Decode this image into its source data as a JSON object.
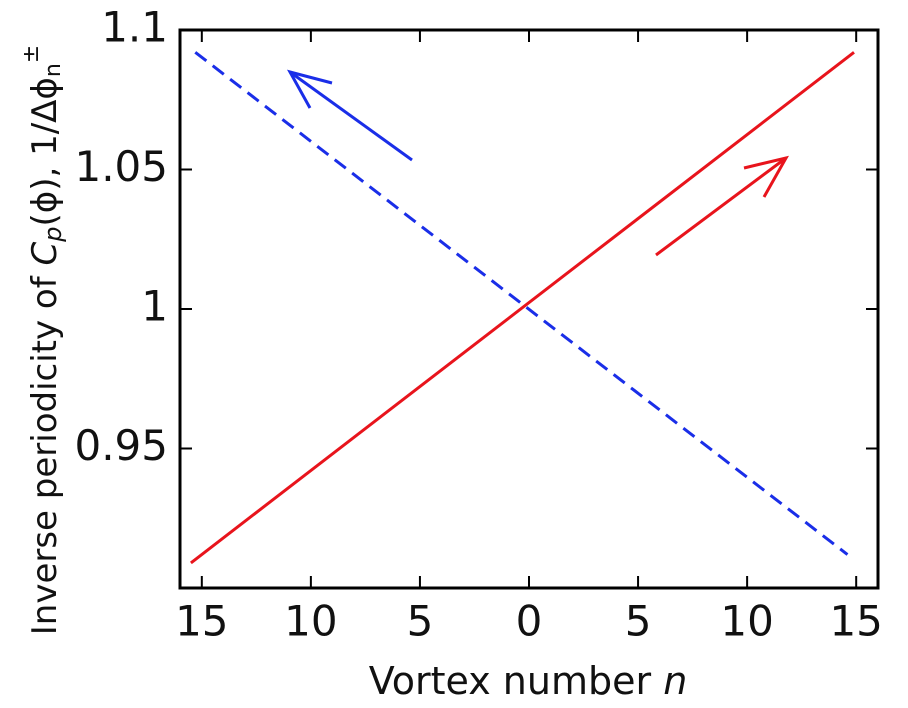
{
  "chart_data": {
    "type": "line",
    "x_label": [
      "Vortex number ",
      "n"
    ],
    "y_label": [
      "Inverse periodicity of ",
      "C",
      "p",
      "(ϕ), 1/Δϕ",
      "n",
      "±"
    ],
    "series": [
      {
        "color": "#e8141c",
        "dash": false,
        "x": [
          -15.5,
          14.9
        ],
        "values": [
          0.909,
          1.092
        ]
      },
      {
        "color": "#1a2ee8",
        "dash": true,
        "x": [
          -15.3,
          14.6
        ],
        "values": [
          1.092,
          0.912
        ]
      }
    ],
    "xlim": [
      -16,
      16
    ],
    "xticks": [
      {
        "value": -15,
        "label": "15"
      },
      {
        "value": -10,
        "label": "10"
      },
      {
        "value": -5,
        "label": "5"
      },
      0,
      5,
      10,
      15
    ],
    "ylim": [
      0.9,
      1.1
    ],
    "yticks": [
      0.95,
      1,
      1.05,
      1.1
    ]
  }
}
